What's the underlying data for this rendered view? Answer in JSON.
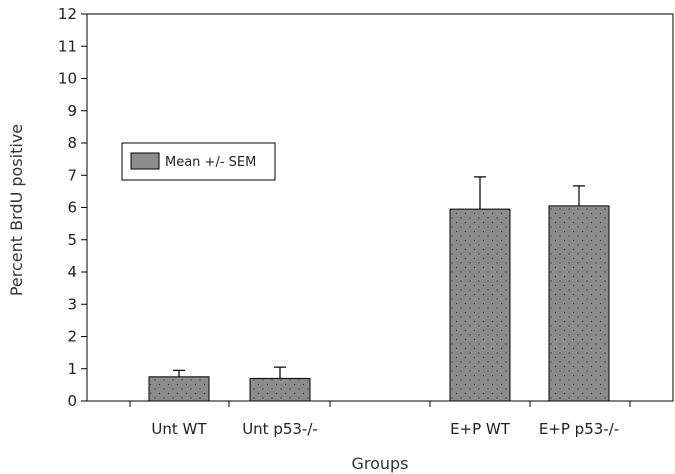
{
  "chart_data": {
    "type": "bar",
    "title": "",
    "xlabel": "Groups",
    "ylabel": "Percent BrdU positive",
    "ylim": [
      0,
      12
    ],
    "yticks": [
      0,
      1,
      2,
      3,
      4,
      5,
      6,
      7,
      8,
      9,
      10,
      11,
      12
    ],
    "categories": [
      "Unt WT",
      "Unt p53-/-",
      "E+P WT",
      "E+P p53-/-"
    ],
    "series": [
      {
        "name": "Mean +/- SEM",
        "values": [
          0.75,
          0.7,
          5.95,
          6.05
        ],
        "errors": [
          0.2,
          0.35,
          1.0,
          0.62
        ]
      }
    ],
    "grid": false,
    "legend_position": "upper-left",
    "bar_color": "#8c8c8c",
    "bar_edge_color": "#000000"
  }
}
